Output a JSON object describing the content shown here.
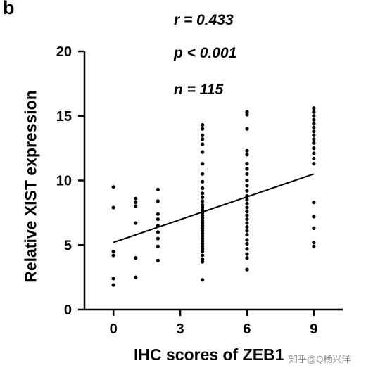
{
  "panel_label": "b",
  "stats": {
    "r": "r = 0.433",
    "p": "p < 0.001",
    "n": "n = 115"
  },
  "watermark": "知乎@Q杨兴洋",
  "chart_data": {
    "type": "scatter",
    "title": "",
    "xlabel": "IHC scores of ZEB1",
    "ylabel": "Relative  XIST expression",
    "x_ticks": [
      0,
      3,
      6,
      9
    ],
    "y_ticks": [
      0,
      5,
      10,
      15,
      20
    ],
    "xlim": [
      -1.3,
      10.3
    ],
    "ylim": [
      0,
      20
    ],
    "grid": false,
    "legend": "none",
    "points": [
      {
        "x": 0,
        "y": 9.5
      },
      {
        "x": 0,
        "y": 7.9
      },
      {
        "x": 0,
        "y": 4.5
      },
      {
        "x": 0,
        "y": 4.2
      },
      {
        "x": 0,
        "y": 2.4
      },
      {
        "x": 0,
        "y": 1.9
      },
      {
        "x": 1,
        "y": 8.6
      },
      {
        "x": 1,
        "y": 8.3
      },
      {
        "x": 1,
        "y": 8.0
      },
      {
        "x": 1,
        "y": 6.7
      },
      {
        "x": 1,
        "y": 4.0
      },
      {
        "x": 1,
        "y": 2.5
      },
      {
        "x": 2,
        "y": 9.3
      },
      {
        "x": 2,
        "y": 8.4
      },
      {
        "x": 2,
        "y": 7.4
      },
      {
        "x": 2,
        "y": 7.0
      },
      {
        "x": 2,
        "y": 6.5
      },
      {
        "x": 2,
        "y": 6.0
      },
      {
        "x": 2,
        "y": 5.5
      },
      {
        "x": 2,
        "y": 4.9
      },
      {
        "x": 2,
        "y": 3.8
      },
      {
        "x": 4,
        "y": 14.3
      },
      {
        "x": 4,
        "y": 14.0
      },
      {
        "x": 4,
        "y": 13.5
      },
      {
        "x": 4,
        "y": 13.2
      },
      {
        "x": 4,
        "y": 12.8
      },
      {
        "x": 4,
        "y": 12.2
      },
      {
        "x": 4,
        "y": 11.3
      },
      {
        "x": 4,
        "y": 10.5
      },
      {
        "x": 4,
        "y": 9.9
      },
      {
        "x": 4,
        "y": 9.4
      },
      {
        "x": 4,
        "y": 9.0
      },
      {
        "x": 4,
        "y": 8.7
      },
      {
        "x": 4,
        "y": 8.4
      },
      {
        "x": 4,
        "y": 8.1
      },
      {
        "x": 4,
        "y": 7.9
      },
      {
        "x": 4,
        "y": 7.7
      },
      {
        "x": 4,
        "y": 7.5
      },
      {
        "x": 4,
        "y": 7.3
      },
      {
        "x": 4,
        "y": 7.1
      },
      {
        "x": 4,
        "y": 6.9
      },
      {
        "x": 4,
        "y": 6.7
      },
      {
        "x": 4,
        "y": 6.5
      },
      {
        "x": 4,
        "y": 6.3
      },
      {
        "x": 4,
        "y": 6.1
      },
      {
        "x": 4,
        "y": 5.9
      },
      {
        "x": 4,
        "y": 5.7
      },
      {
        "x": 4,
        "y": 5.5
      },
      {
        "x": 4,
        "y": 5.3
      },
      {
        "x": 4,
        "y": 5.1
      },
      {
        "x": 4,
        "y": 4.9
      },
      {
        "x": 4,
        "y": 4.7
      },
      {
        "x": 4,
        "y": 4.5
      },
      {
        "x": 4,
        "y": 4.2
      },
      {
        "x": 4,
        "y": 3.9
      },
      {
        "x": 4,
        "y": 3.7
      },
      {
        "x": 4,
        "y": 2.3
      },
      {
        "x": 6,
        "y": 15.3
      },
      {
        "x": 6,
        "y": 15.1
      },
      {
        "x": 6,
        "y": 14.0
      },
      {
        "x": 6,
        "y": 12.3
      },
      {
        "x": 6,
        "y": 12.0
      },
      {
        "x": 6,
        "y": 11.3
      },
      {
        "x": 6,
        "y": 10.9
      },
      {
        "x": 6,
        "y": 10.5
      },
      {
        "x": 6,
        "y": 10.0
      },
      {
        "x": 6,
        "y": 9.6
      },
      {
        "x": 6,
        "y": 9.2
      },
      {
        "x": 6,
        "y": 8.8
      },
      {
        "x": 6,
        "y": 8.5
      },
      {
        "x": 6,
        "y": 8.2
      },
      {
        "x": 6,
        "y": 7.9
      },
      {
        "x": 6,
        "y": 7.6
      },
      {
        "x": 6,
        "y": 7.3
      },
      {
        "x": 6,
        "y": 7.0
      },
      {
        "x": 6,
        "y": 6.7
      },
      {
        "x": 6,
        "y": 6.4
      },
      {
        "x": 6,
        "y": 6.1
      },
      {
        "x": 6,
        "y": 5.8
      },
      {
        "x": 6,
        "y": 5.4
      },
      {
        "x": 6,
        "y": 5.1
      },
      {
        "x": 6,
        "y": 4.7
      },
      {
        "x": 6,
        "y": 4.3
      },
      {
        "x": 6,
        "y": 4.0
      },
      {
        "x": 6,
        "y": 3.1
      },
      {
        "x": 9,
        "y": 15.6
      },
      {
        "x": 9,
        "y": 15.3
      },
      {
        "x": 9,
        "y": 15.0
      },
      {
        "x": 9,
        "y": 14.7
      },
      {
        "x": 9,
        "y": 14.4
      },
      {
        "x": 9,
        "y": 14.1
      },
      {
        "x": 9,
        "y": 13.8
      },
      {
        "x": 9,
        "y": 13.5
      },
      {
        "x": 9,
        "y": 13.2
      },
      {
        "x": 9,
        "y": 12.9
      },
      {
        "x": 9,
        "y": 12.5
      },
      {
        "x": 9,
        "y": 12.1
      },
      {
        "x": 9,
        "y": 11.7
      },
      {
        "x": 9,
        "y": 11.3
      },
      {
        "x": 9,
        "y": 8.3
      },
      {
        "x": 9,
        "y": 7.2
      },
      {
        "x": 9,
        "y": 6.3
      },
      {
        "x": 9,
        "y": 5.2
      },
      {
        "x": 9,
        "y": 4.9
      }
    ],
    "regression_line": {
      "x": [
        0,
        9
      ],
      "y": [
        5.2,
        10.5
      ]
    }
  }
}
